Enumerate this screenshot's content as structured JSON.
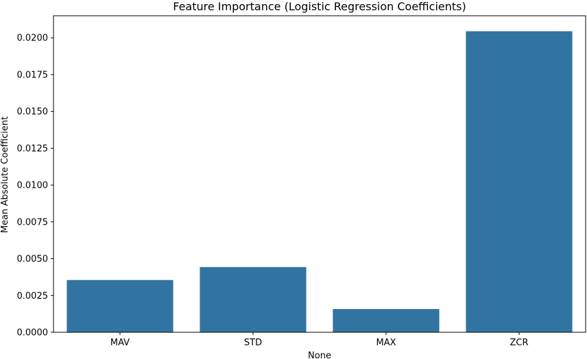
{
  "chart_data": {
    "type": "bar",
    "title": "Feature Importance (Logistic Regression Coefficients)",
    "xlabel": "None",
    "ylabel": "Mean Absolute Coefficient",
    "categories": [
      "MAV",
      "STD",
      "MAX",
      "ZCR"
    ],
    "values": [
      0.00355,
      0.00443,
      0.00158,
      0.02045
    ],
    "ylim": [
      0,
      0.0215
    ],
    "yticks": [
      "0.0000",
      "0.0025",
      "0.0050",
      "0.0075",
      "0.0100",
      "0.0125",
      "0.0150",
      "0.0175",
      "0.0200"
    ],
    "bar_color": "#3274a1",
    "grid": false,
    "legend": "none"
  }
}
